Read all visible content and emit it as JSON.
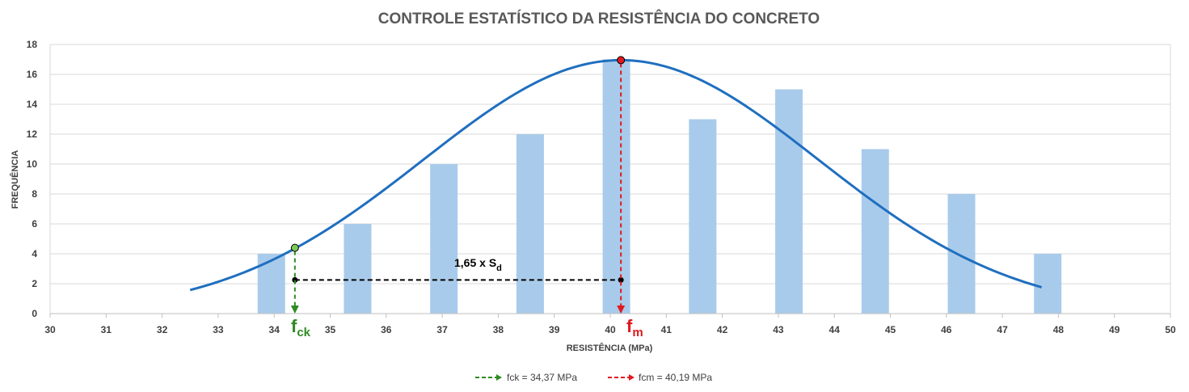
{
  "chart_data": {
    "type": "bar",
    "title": "CONTROLE ESTATÍSTICO DA RESISTÊNCIA DO CONCRETO",
    "xlabel": "RESISTÊNCIA (MPa)",
    "ylabel": "FREQUÊNCIA",
    "xlim": [
      30,
      50
    ],
    "ylim": [
      0,
      18
    ],
    "x_ticks": [
      "30",
      "31",
      "32",
      "33",
      "34",
      "35",
      "36",
      "37",
      "38",
      "39",
      "40",
      "41",
      "42",
      "43",
      "44",
      "45",
      "46",
      "47",
      "48",
      "49",
      "50"
    ],
    "y_ticks": [
      "0",
      "2",
      "4",
      "6",
      "8",
      "10",
      "12",
      "14",
      "16",
      "18"
    ],
    "grid": true,
    "bars": {
      "color": "#A9CBEB",
      "x": [
        33.95,
        35.49,
        37.03,
        38.57,
        40.11,
        41.65,
        43.19,
        44.73,
        46.27,
        47.81
      ],
      "values": [
        4,
        6,
        10,
        12,
        17,
        13,
        15,
        11,
        8,
        4
      ]
    },
    "normal_curve": {
      "color": "#1F6FBF",
      "mean": 40.19,
      "sd": 3.53,
      "peak": 16.95,
      "x_range": [
        32.5,
        47.7
      ]
    },
    "markers": {
      "fck": {
        "value": 34.37,
        "frequency": 4.4,
        "color": "#2E8B22",
        "label_main": "f",
        "label_sub": "ck",
        "legend": "fck = 34,37 MPa"
      },
      "fcm": {
        "value": 40.19,
        "frequency": 16.95,
        "color": "#E0191E",
        "label_main": "f",
        "label_sub": "m",
        "legend": "fcm = 40,19 MPa"
      }
    },
    "annotation": {
      "text_main": "1,65 x S",
      "text_sub": "d",
      "line_y": 2.25,
      "from_x": 34.37,
      "to_x": 40.19
    },
    "legend_position": "bottom"
  }
}
